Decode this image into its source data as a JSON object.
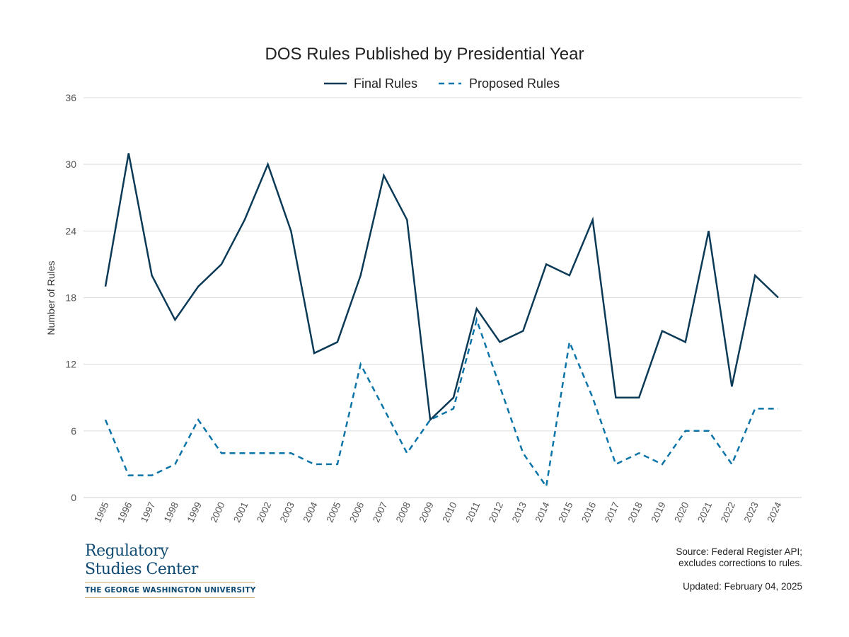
{
  "chart_data": {
    "type": "line",
    "title": "DOS Rules Published by Presidential Year",
    "xlabel": "",
    "ylabel": "Number of Rules",
    "ylim": [
      0,
      36
    ],
    "yticks": [
      0,
      6,
      12,
      18,
      24,
      30,
      36
    ],
    "grid": true,
    "legend_position": "top-center",
    "x": [
      1995,
      1996,
      1997,
      1998,
      1999,
      2000,
      2001,
      2002,
      2003,
      2004,
      2005,
      2006,
      2007,
      2008,
      2009,
      2010,
      2011,
      2012,
      2013,
      2014,
      2015,
      2016,
      2017,
      2018,
      2019,
      2020,
      2021,
      2022,
      2023,
      2024
    ],
    "series": [
      {
        "name": "Final Rules",
        "color": "#0b3a57",
        "style": "solid",
        "values": [
          19,
          31,
          20,
          16,
          19,
          21,
          25,
          30,
          24,
          13,
          14,
          20,
          29,
          25,
          7,
          9,
          17,
          14,
          15,
          21,
          20,
          25,
          9,
          9,
          15,
          14,
          24,
          10,
          20,
          18
        ]
      },
      {
        "name": "Proposed Rules",
        "color": "#0a74a8",
        "style": "dashed",
        "values": [
          7,
          2,
          2,
          3,
          7,
          4,
          4,
          4,
          4,
          3,
          3,
          12,
          8,
          4,
          7,
          8,
          16,
          10,
          4,
          1,
          14,
          9,
          3,
          4,
          3,
          6,
          6,
          3,
          8,
          8
        ]
      }
    ]
  },
  "footer": {
    "logo": {
      "line1": "Regulatory",
      "line2": "Studies Center",
      "line3": "THE GEORGE WASHINGTON UNIVERSITY"
    },
    "source_line1": "Source: Federal Register API;",
    "source_line2": "excludes corrections to rules.",
    "updated": "Updated: February 04, 2025"
  }
}
